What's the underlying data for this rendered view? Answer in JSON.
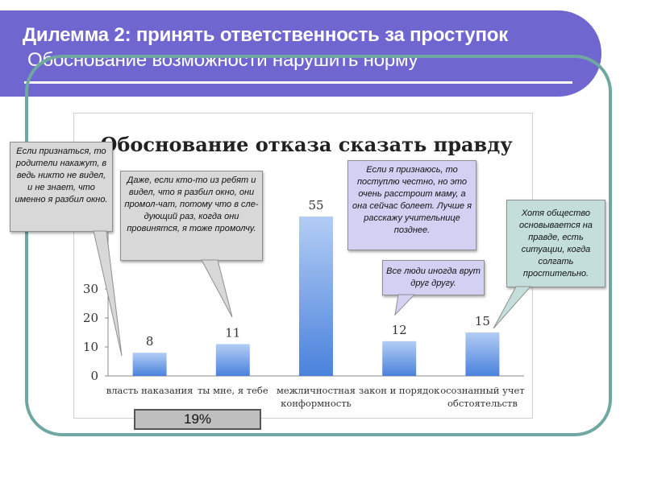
{
  "slide": {
    "title": "Дилемма 2: принять ответственность за проступок",
    "subtitle": "Обоснование возможности нарушить норму"
  },
  "chart_data": {
    "type": "bar",
    "title": "Обоснование отказа сказать правду",
    "categories": [
      "власть наказания",
      "ты мне, я тебе",
      "межличностная конформность",
      "закон и порядок",
      "осознанный учет обстоятельств"
    ],
    "values": [
      8,
      11,
      55,
      12,
      15
    ],
    "ylim": [
      0,
      60
    ],
    "yticks": [
      0,
      10,
      20,
      30
    ],
    "bar_color": "#8ab4ec",
    "grid": false,
    "legend": "none"
  },
  "callouts": {
    "punishment": "Если признаться, то родители накажут, в ведь никто не видел, и не знает, что именно я разбил окно.",
    "reciprocity": "Даже, если кто-то из ребят и видел, что я разбил окно, они промол-чат, потому что в сле-дующий раз, когда они провинятся, я тоже промолчу.",
    "conformity": "Если я признаюсь, то поступлю честно, но это очень расстроит маму, а она сейчас болеет. Лучше я расскажу учительнице позднее.",
    "law": "Все люди иногда врут друг другу.",
    "circumstances": "Хотя общество основывается на правде, есть ситуации, когда солгать простительно."
  },
  "percent_label": "19%"
}
